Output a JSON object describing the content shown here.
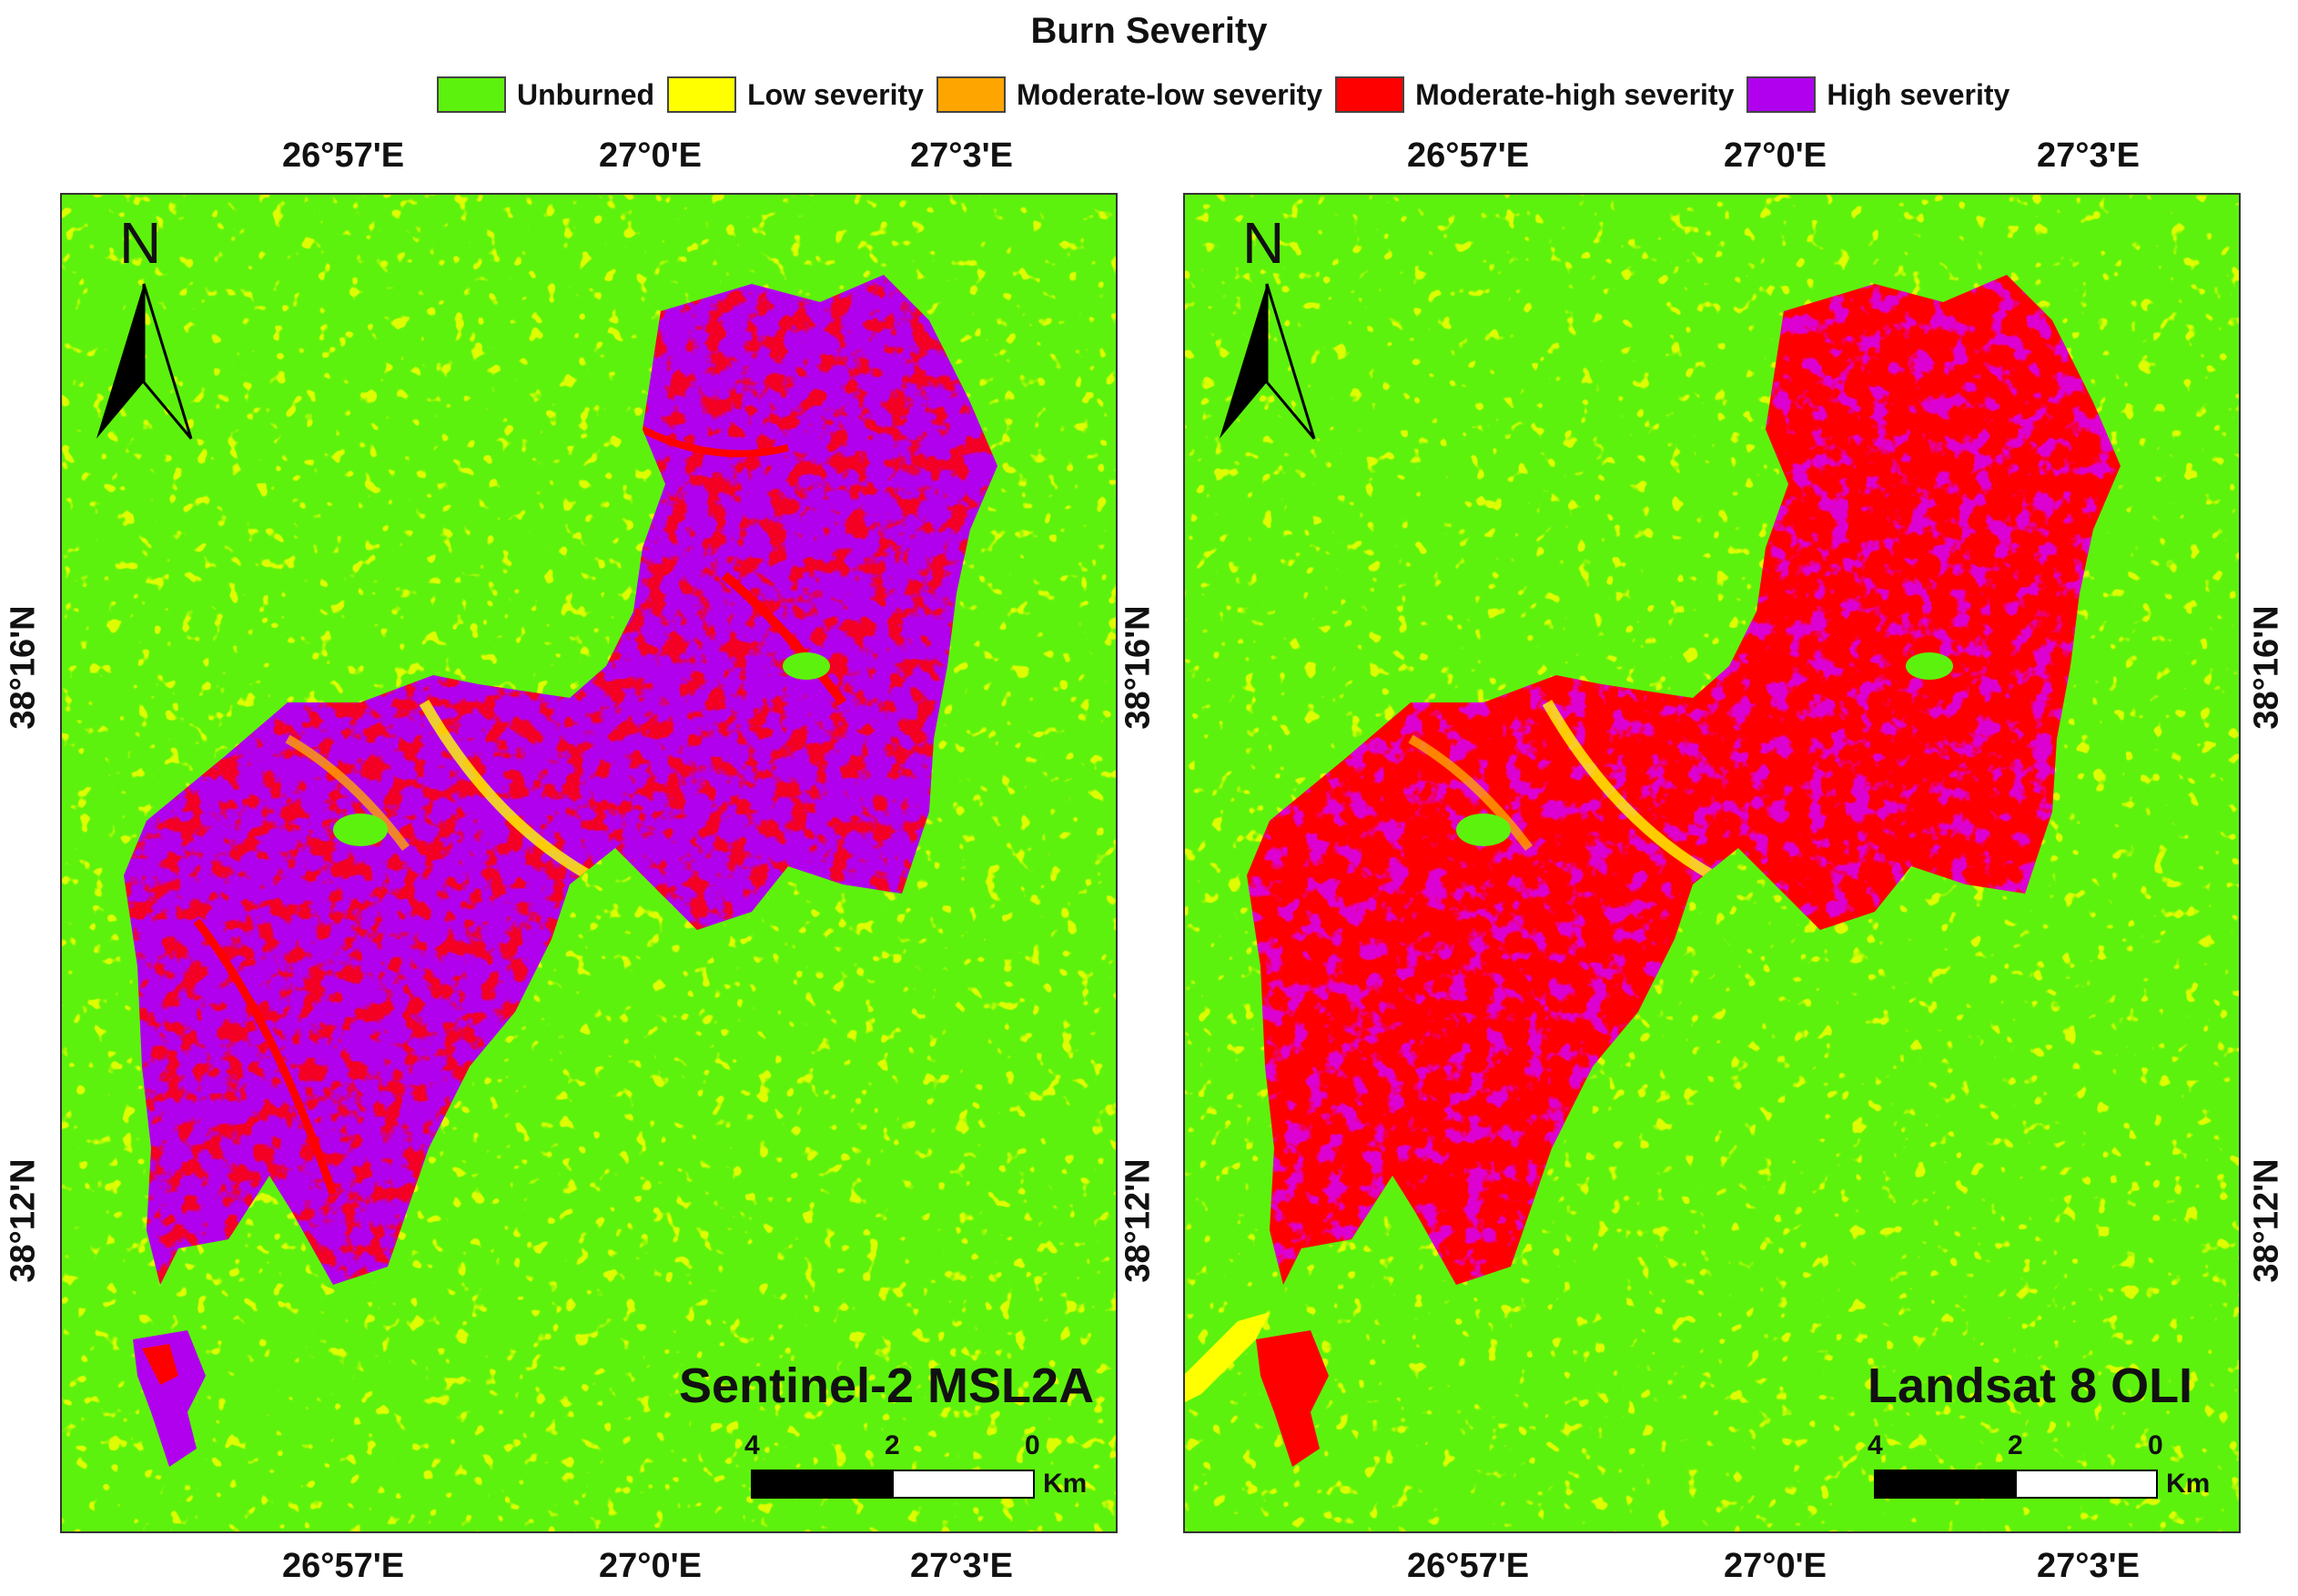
{
  "legend": {
    "title": "Burn Severity",
    "items": [
      {
        "label": "Unburned",
        "color": "#5df20d"
      },
      {
        "label": "Low severity",
        "color": "#ffff00"
      },
      {
        "label": "Moderate-low severity",
        "color": "#ffa500"
      },
      {
        "label": "Moderate-high severity",
        "color": "#ff0000"
      },
      {
        "label": "High severity",
        "color": "#b000ee"
      }
    ]
  },
  "longitude_ticks": [
    "26°57'E",
    "27°0'E",
    "27°3'E"
  ],
  "latitude_ticks": [
    "38°16'N",
    "38°12'N"
  ],
  "panels": [
    {
      "title": "Sentinel-2 MSL2A",
      "dominant_burn_class": "High severity"
    },
    {
      "title": "Landsat 8 OLI",
      "dominant_burn_class": "Moderate-high severity"
    }
  ],
  "north_arrow": {
    "label": "N"
  },
  "scale_bar": {
    "labels": [
      "4",
      "2",
      "0"
    ],
    "unit": "Km"
  }
}
